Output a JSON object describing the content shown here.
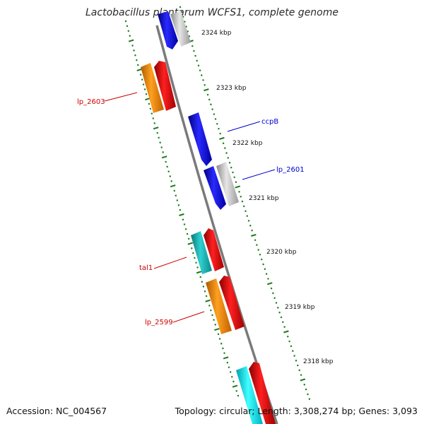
{
  "title": "Lactobacillus plantarum WCFS1, complete genome",
  "footer": {
    "accession": "Accession: NC_004567",
    "summary": "Topology: circular; Length: 3,308,274 bp; Genes: 3,093"
  },
  "ticks": [
    "2324 kbp",
    "2323 kbp",
    "2322 kbp",
    "2321 kbp",
    "2320 kbp",
    "2319 kbp",
    "2318 kbp"
  ],
  "gene_labels": [
    {
      "name": "lp_2603",
      "color": "#cc0000"
    },
    {
      "name": "ccpB",
      "color": "#0000cc"
    },
    {
      "name": "lp_2601",
      "color": "#0000cc"
    },
    {
      "name": "tal1",
      "color": "#cc0000"
    },
    {
      "name": "lp_2599",
      "color": "#cc0000"
    }
  ],
  "colors": {
    "backbone": "#7a7a7a",
    "tick_marks": "#1a7a1a",
    "forward_gene": "#0000ee",
    "forward_gene_gray": "#c4c4c4",
    "reverse_gene": "#ee0000",
    "orange_gene": "#ff8c00",
    "teal_gene": "#17b5b5",
    "cyan_gene": "#00e5ee"
  }
}
